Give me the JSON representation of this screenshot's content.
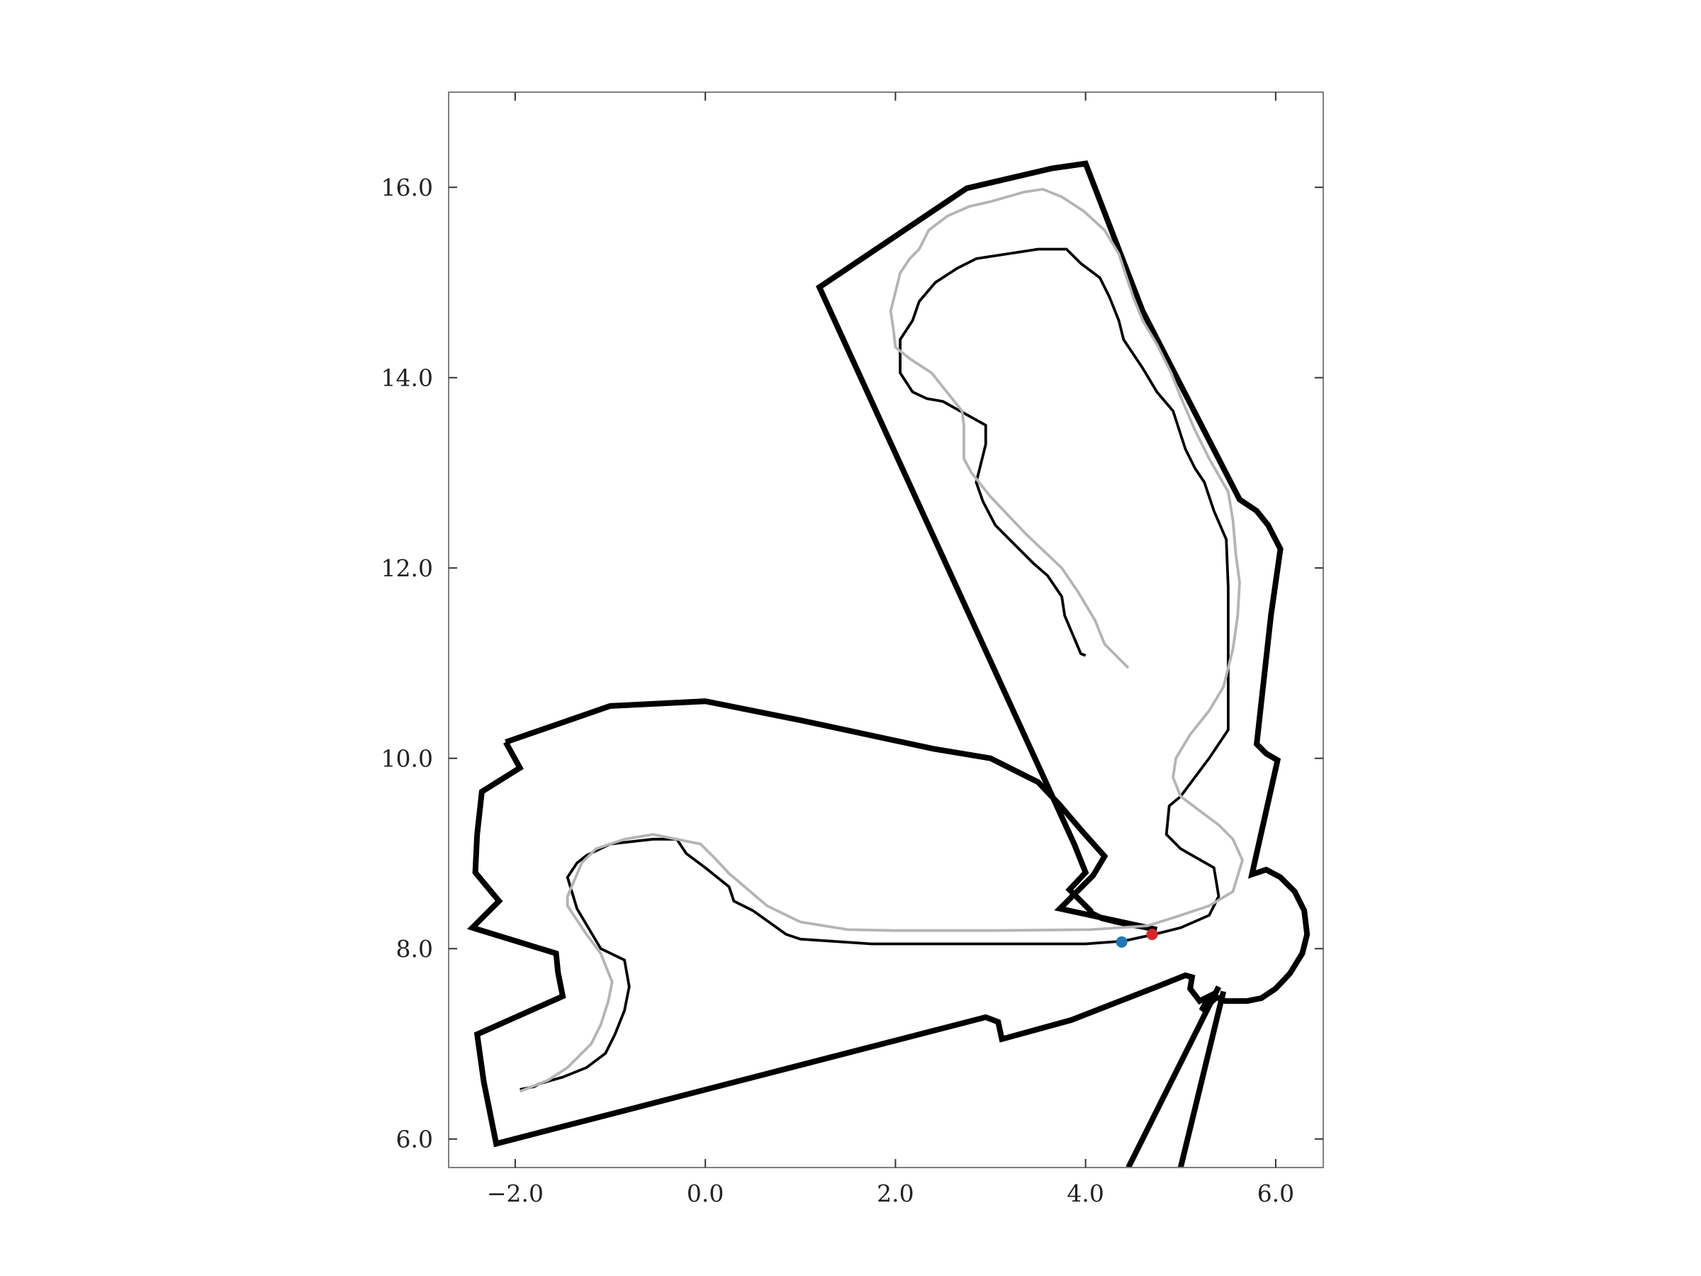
{
  "chart_data": {
    "type": "line",
    "title": "",
    "xlabel": "",
    "ylabel": "",
    "xlim": [
      -2.7,
      6.5
    ],
    "ylim": [
      5.7,
      17.0
    ],
    "grid": false,
    "aspect": "equal",
    "x_ticks": [
      -2.0,
      0.0,
      2.0,
      4.0,
      6.0
    ],
    "x_tick_labels": [
      "−2.0",
      "0.0",
      "2.0",
      "4.0",
      "6.0"
    ],
    "y_ticks": [
      6.0,
      8.0,
      10.0,
      12.0,
      14.0,
      16.0
    ],
    "y_tick_labels": [
      "6.0",
      "8.0",
      "10.0",
      "12.0",
      "14.0",
      "16.0"
    ],
    "colors": {
      "boundary": "#000000",
      "path_black": "#000000",
      "path_gray": "#b4b4b4",
      "point_blue": "#1f77b4",
      "point_red": "#d62728"
    },
    "series": [
      {
        "style": "boundary",
        "points": [
          [
            -2.1,
            10.17
          ],
          [
            -1.95,
            9.9
          ],
          [
            -2.35,
            9.65
          ],
          [
            -2.4,
            9.2
          ],
          [
            -2.42,
            8.8
          ],
          [
            -2.17,
            8.5
          ],
          [
            -2.45,
            8.22
          ],
          [
            -1.57,
            7.95
          ],
          [
            -1.55,
            7.75
          ],
          [
            -1.5,
            7.5
          ],
          [
            -2.4,
            7.1
          ],
          [
            -2.33,
            6.6
          ],
          [
            -2.25,
            6.2
          ],
          [
            -2.2,
            5.95
          ],
          [
            2.95,
            7.28
          ],
          [
            3.08,
            7.23
          ],
          [
            3.12,
            7.05
          ],
          [
            3.85,
            7.25
          ],
          [
            4.75,
            7.6
          ],
          [
            5.05,
            7.72
          ],
          [
            5.12,
            7.7
          ],
          [
            5.1,
            7.58
          ],
          [
            5.2,
            7.45
          ],
          [
            5.3,
            7.5
          ],
          [
            5.22,
            7.35
          ],
          [
            5.38,
            7.49
          ],
          [
            5.47,
            7.45
          ],
          [
            5.7,
            7.45
          ],
          [
            5.85,
            7.48
          ],
          [
            6.0,
            7.58
          ],
          [
            6.15,
            7.74
          ],
          [
            6.28,
            7.95
          ],
          [
            6.33,
            8.15
          ],
          [
            6.3,
            8.4
          ],
          [
            6.2,
            8.6
          ],
          [
            6.05,
            8.75
          ],
          [
            5.9,
            8.83
          ],
          [
            5.75,
            8.78
          ],
          [
            6.02,
            9.98
          ],
          [
            5.9,
            10.05
          ],
          [
            5.8,
            10.15
          ],
          [
            5.95,
            11.5
          ],
          [
            6.05,
            12.2
          ],
          [
            5.92,
            12.45
          ],
          [
            5.8,
            12.6
          ],
          [
            5.62,
            12.72
          ],
          [
            4.6,
            14.7
          ],
          [
            4.0,
            16.25
          ],
          [
            3.65,
            16.2
          ],
          [
            2.75,
            15.99
          ],
          [
            1.2,
            14.95
          ],
          [
            3.88,
            9.1
          ],
          [
            4.0,
            8.8
          ],
          [
            3.83,
            8.62
          ],
          [
            4.05,
            8.4
          ],
          [
            4.05,
            8.38
          ],
          [
            4.17,
            8.32
          ],
          [
            4.33,
            8.28
          ],
          [
            4.48,
            8.25
          ],
          [
            4.55,
            8.24
          ],
          [
            4.65,
            8.22
          ],
          [
            4.75,
            8.2
          ],
          [
            3.73,
            8.42
          ],
          [
            4.08,
            8.77
          ],
          [
            4.2,
            8.97
          ],
          [
            3.95,
            9.25
          ],
          [
            3.72,
            9.52
          ],
          [
            3.5,
            9.75
          ],
          [
            3.0,
            10.0
          ],
          [
            2.4,
            10.1
          ],
          [
            1.0,
            10.4
          ],
          [
            0.0,
            10.6
          ],
          [
            -1.0,
            10.55
          ],
          [
            -2.1,
            10.17
          ]
        ]
      },
      {
        "style": "boundary",
        "points": [
          [
            4.45,
            5.7
          ],
          [
            5.4,
            7.6
          ]
        ]
      },
      {
        "style": "boundary",
        "points": [
          [
            5.0,
            5.7
          ],
          [
            5.45,
            7.55
          ]
        ]
      },
      {
        "style": "path_black",
        "points": [
          [
            4.0,
            11.08
          ],
          [
            3.95,
            11.1
          ],
          [
            3.78,
            11.5
          ],
          [
            3.75,
            11.7
          ],
          [
            3.6,
            11.92
          ],
          [
            3.45,
            12.05
          ],
          [
            3.25,
            12.25
          ],
          [
            3.05,
            12.45
          ],
          [
            2.92,
            12.7
          ],
          [
            2.85,
            12.9
          ],
          [
            2.9,
            13.1
          ],
          [
            2.95,
            13.3
          ],
          [
            2.95,
            13.5
          ],
          [
            2.5,
            13.75
          ],
          [
            2.33,
            13.78
          ],
          [
            2.18,
            13.85
          ],
          [
            2.05,
            14.05
          ],
          [
            2.05,
            14.4
          ],
          [
            2.18,
            14.6
          ],
          [
            2.25,
            14.8
          ],
          [
            2.42,
            15.0
          ],
          [
            2.65,
            15.15
          ],
          [
            2.85,
            15.25
          ],
          [
            3.5,
            15.35
          ],
          [
            3.8,
            15.35
          ],
          [
            3.95,
            15.2
          ],
          [
            4.15,
            15.05
          ],
          [
            4.25,
            14.85
          ],
          [
            4.35,
            14.6
          ],
          [
            4.4,
            14.4
          ],
          [
            4.6,
            14.1
          ],
          [
            4.75,
            13.85
          ],
          [
            4.92,
            13.65
          ],
          [
            5.05,
            13.25
          ],
          [
            5.15,
            13.05
          ],
          [
            5.25,
            12.9
          ],
          [
            5.35,
            12.6
          ],
          [
            5.48,
            12.3
          ],
          [
            5.5,
            11.8
          ],
          [
            5.5,
            11.2
          ],
          [
            5.5,
            10.8
          ],
          [
            5.5,
            10.3
          ],
          [
            5.3,
            10.0
          ],
          [
            5.0,
            9.6
          ],
          [
            4.88,
            9.5
          ],
          [
            4.85,
            9.2
          ],
          [
            5.0,
            9.05
          ],
          [
            5.35,
            8.85
          ],
          [
            5.4,
            8.55
          ],
          [
            5.3,
            8.35
          ],
          [
            5.0,
            8.22
          ],
          [
            4.72,
            8.15
          ],
          [
            4.4,
            8.08
          ],
          [
            4.0,
            8.05
          ],
          [
            3.0,
            8.05
          ],
          [
            2.0,
            8.05
          ],
          [
            1.75,
            8.05
          ],
          [
            1.0,
            8.1
          ],
          [
            0.85,
            8.15
          ],
          [
            0.5,
            8.4
          ],
          [
            0.3,
            8.5
          ],
          [
            0.25,
            8.65
          ],
          [
            0.0,
            8.85
          ],
          [
            -0.2,
            9.0
          ],
          [
            -0.3,
            9.15
          ],
          [
            -0.55,
            9.15
          ],
          [
            -1.0,
            9.1
          ],
          [
            -1.25,
            8.98
          ],
          [
            -1.35,
            8.9
          ],
          [
            -1.45,
            8.75
          ],
          [
            -1.35,
            8.42
          ],
          [
            -1.1,
            8.0
          ],
          [
            -0.85,
            7.88
          ],
          [
            -0.8,
            7.6
          ],
          [
            -0.85,
            7.35
          ],
          [
            -0.95,
            7.1
          ],
          [
            -1.05,
            6.9
          ],
          [
            -1.25,
            6.75
          ],
          [
            -1.5,
            6.65
          ],
          [
            -1.75,
            6.58
          ],
          [
            -1.8,
            6.55
          ],
          [
            -1.95,
            6.52
          ]
        ]
      },
      {
        "style": "path_gray",
        "points": [
          [
            4.45,
            10.95
          ],
          [
            4.2,
            11.2
          ],
          [
            4.1,
            11.45
          ],
          [
            3.92,
            11.75
          ],
          [
            3.75,
            12.0
          ],
          [
            3.38,
            12.35
          ],
          [
            3.0,
            12.75
          ],
          [
            2.8,
            13.0
          ],
          [
            2.72,
            13.15
          ],
          [
            2.72,
            13.5
          ],
          [
            2.7,
            13.65
          ],
          [
            2.38,
            14.05
          ],
          [
            2.15,
            14.2
          ],
          [
            2.0,
            14.32
          ],
          [
            1.98,
            14.5
          ],
          [
            1.95,
            14.7
          ],
          [
            2.05,
            15.1
          ],
          [
            2.15,
            15.25
          ],
          [
            2.25,
            15.35
          ],
          [
            2.35,
            15.55
          ],
          [
            2.55,
            15.7
          ],
          [
            2.78,
            15.8
          ],
          [
            3.0,
            15.85
          ],
          [
            3.35,
            15.95
          ],
          [
            3.55,
            15.98
          ],
          [
            3.75,
            15.9
          ],
          [
            3.98,
            15.75
          ],
          [
            4.2,
            15.55
          ],
          [
            4.35,
            15.3
          ],
          [
            4.5,
            14.85
          ],
          [
            4.6,
            14.6
          ],
          [
            4.75,
            14.35
          ],
          [
            4.9,
            14.05
          ],
          [
            5.0,
            13.8
          ],
          [
            5.15,
            13.45
          ],
          [
            5.3,
            13.15
          ],
          [
            5.5,
            12.8
          ],
          [
            5.55,
            12.5
          ],
          [
            5.58,
            12.15
          ],
          [
            5.62,
            11.85
          ],
          [
            5.6,
            11.5
          ],
          [
            5.55,
            11.15
          ],
          [
            5.45,
            10.75
          ],
          [
            5.3,
            10.5
          ],
          [
            5.1,
            10.25
          ],
          [
            4.95,
            10.0
          ],
          [
            4.92,
            9.8
          ],
          [
            5.0,
            9.6
          ],
          [
            5.2,
            9.45
          ],
          [
            5.4,
            9.3
          ],
          [
            5.55,
            9.15
          ],
          [
            5.65,
            8.93
          ],
          [
            5.55,
            8.6
          ],
          [
            5.3,
            8.45
          ],
          [
            5.0,
            8.35
          ],
          [
            4.65,
            8.24
          ],
          [
            4.05,
            8.2
          ],
          [
            3.0,
            8.19
          ],
          [
            2.0,
            8.19
          ],
          [
            1.5,
            8.2
          ],
          [
            1.0,
            8.28
          ],
          [
            0.65,
            8.45
          ],
          [
            0.45,
            8.62
          ],
          [
            0.25,
            8.79
          ],
          [
            0.1,
            8.95
          ],
          [
            -0.05,
            9.1
          ],
          [
            -0.55,
            9.2
          ],
          [
            -0.85,
            9.15
          ],
          [
            -1.15,
            9.05
          ],
          [
            -1.3,
            8.9
          ],
          [
            -1.45,
            8.55
          ],
          [
            -1.45,
            8.45
          ],
          [
            -1.35,
            8.3
          ],
          [
            -1.25,
            8.15
          ],
          [
            -1.1,
            7.95
          ],
          [
            -0.98,
            7.65
          ],
          [
            -1.02,
            7.45
          ],
          [
            -1.1,
            7.2
          ],
          [
            -1.2,
            7.0
          ],
          [
            -1.45,
            6.75
          ],
          [
            -1.65,
            6.62
          ],
          [
            -1.95,
            6.5
          ]
        ]
      }
    ],
    "points": [
      {
        "x": 4.38,
        "y": 8.07,
        "color": "point_blue"
      },
      {
        "x": 4.7,
        "y": 8.15,
        "color": "point_red"
      }
    ]
  }
}
